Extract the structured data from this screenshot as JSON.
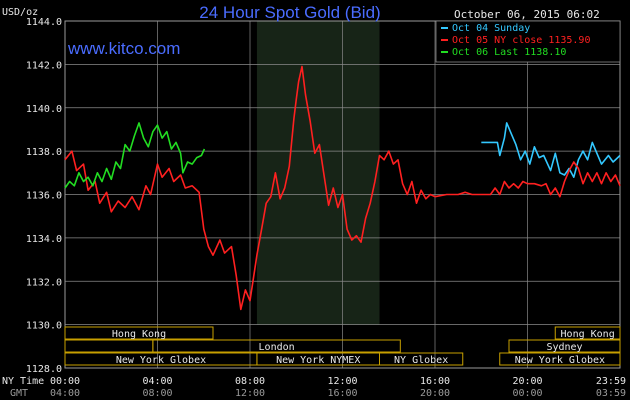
{
  "header": {
    "title": "24 Hour Spot Gold (Bid)",
    "datetime": "October 06, 2015 06:02",
    "unit": "USD/oz",
    "watermark": "www.kitco.com"
  },
  "legend": [
    {
      "label": "Oct 04 Sunday",
      "color": "#33c8ff"
    },
    {
      "label": "Oct 05 NY close 1135.90",
      "color": "#ff2020"
    },
    {
      "label": "Oct 06 Last 1138.10",
      "color": "#22dd22"
    }
  ],
  "colors": {
    "background": "#000000",
    "grid": "#8a8a8a",
    "title": "#4a6cff",
    "session_box": "#c8a000",
    "shaded_session": "#1a2a1a"
  },
  "sessions": {
    "row1": [
      {
        "label": "Hong Kong",
        "start_hour": 0,
        "end_hour": 6.4
      },
      {
        "label": "Hong Kong",
        "start_hour": 21.2,
        "end_hour": 24.0
      }
    ],
    "row2": [
      {
        "label": "",
        "start_hour": 0,
        "end_hour": 3.8
      },
      {
        "label": "London",
        "start_hour": 3.8,
        "end_hour": 14.5
      },
      {
        "label": "Sydney",
        "start_hour": 19.2,
        "end_hour": 24.0
      }
    ],
    "row3": [
      {
        "label": "New York Globex",
        "start_hour": 0,
        "end_hour": 8.3
      },
      {
        "label": "New York NYMEX",
        "start_hour": 8.3,
        "end_hour": 13.6
      },
      {
        "label": "NY Globex",
        "start_hour": 13.6,
        "end_hour": 17.2
      },
      {
        "label": "New York Globex",
        "start_hour": 18.8,
        "end_hour": 24.0
      }
    ]
  },
  "time_axis": {
    "ny_label": "NY Time",
    "gmt_label": "GMT",
    "ny_ticks": [
      "00:00",
      "04:00",
      "08:00",
      "12:00",
      "16:00",
      "20:00",
      "23:59"
    ],
    "gmt_ticks": [
      "04:00",
      "08:00",
      "12:00",
      "16:00",
      "20:00",
      "00:00",
      "03:59"
    ]
  },
  "chart_data": {
    "type": "line",
    "title": "24 Hour Spot Gold (Bid)",
    "ylabel": "USD/oz",
    "ylim": [
      1128.0,
      1144.0
    ],
    "yticks": [
      "1128.0",
      "1130.0",
      "1132.0",
      "1134.0",
      "1136.0",
      "1138.0",
      "1140.0",
      "1142.0",
      "1144.0"
    ],
    "xlim": [
      0,
      24
    ],
    "grid": true,
    "shaded_range_hours": [
      8.3,
      13.6
    ],
    "series": [
      {
        "name": "Oct 04 Sunday",
        "color": "#33c8ff",
        "points": [
          [
            18.0,
            1138.4
          ],
          [
            18.7,
            1138.4
          ],
          [
            18.8,
            1137.8
          ],
          [
            19.0,
            1138.6
          ],
          [
            19.1,
            1139.3
          ],
          [
            19.3,
            1138.8
          ],
          [
            19.5,
            1138.3
          ],
          [
            19.7,
            1137.6
          ],
          [
            19.9,
            1138.0
          ],
          [
            20.1,
            1137.4
          ],
          [
            20.3,
            1138.2
          ],
          [
            20.5,
            1137.7
          ],
          [
            20.7,
            1137.8
          ],
          [
            21.0,
            1137.1
          ],
          [
            21.2,
            1137.9
          ],
          [
            21.4,
            1137.0
          ],
          [
            21.6,
            1136.9
          ],
          [
            21.8,
            1137.2
          ],
          [
            22.0,
            1136.8
          ],
          [
            22.2,
            1137.6
          ],
          [
            22.4,
            1138.0
          ],
          [
            22.6,
            1137.6
          ],
          [
            22.8,
            1138.4
          ],
          [
            23.0,
            1137.9
          ],
          [
            23.2,
            1137.4
          ],
          [
            23.5,
            1137.8
          ],
          [
            23.7,
            1137.5
          ],
          [
            24.0,
            1137.8
          ]
        ]
      },
      {
        "name": "Oct 05 NY close 1135.90",
        "color": "#ff2020",
        "points": [
          [
            0.0,
            1137.6
          ],
          [
            0.3,
            1138.0
          ],
          [
            0.5,
            1137.1
          ],
          [
            0.8,
            1137.4
          ],
          [
            1.0,
            1136.2
          ],
          [
            1.3,
            1136.6
          ],
          [
            1.5,
            1135.6
          ],
          [
            1.8,
            1136.1
          ],
          [
            2.0,
            1135.2
          ],
          [
            2.3,
            1135.7
          ],
          [
            2.6,
            1135.4
          ],
          [
            2.9,
            1135.9
          ],
          [
            3.2,
            1135.3
          ],
          [
            3.5,
            1136.4
          ],
          [
            3.7,
            1136.0
          ],
          [
            4.0,
            1137.4
          ],
          [
            4.2,
            1136.8
          ],
          [
            4.5,
            1137.2
          ],
          [
            4.7,
            1136.6
          ],
          [
            5.0,
            1136.9
          ],
          [
            5.2,
            1136.3
          ],
          [
            5.5,
            1136.4
          ],
          [
            5.8,
            1136.1
          ],
          [
            6.0,
            1134.4
          ],
          [
            6.2,
            1133.6
          ],
          [
            6.4,
            1133.2
          ],
          [
            6.7,
            1133.9
          ],
          [
            6.9,
            1133.3
          ],
          [
            7.2,
            1133.6
          ],
          [
            7.4,
            1132.3
          ],
          [
            7.6,
            1130.7
          ],
          [
            7.8,
            1131.6
          ],
          [
            8.0,
            1131.1
          ],
          [
            8.3,
            1133.2
          ],
          [
            8.5,
            1134.4
          ],
          [
            8.7,
            1135.6
          ],
          [
            8.9,
            1135.9
          ],
          [
            9.1,
            1137.0
          ],
          [
            9.3,
            1135.8
          ],
          [
            9.5,
            1136.3
          ],
          [
            9.7,
            1137.3
          ],
          [
            9.9,
            1139.5
          ],
          [
            10.0,
            1140.4
          ],
          [
            10.1,
            1141.2
          ],
          [
            10.25,
            1141.9
          ],
          [
            10.4,
            1140.6
          ],
          [
            10.6,
            1139.4
          ],
          [
            10.8,
            1137.9
          ],
          [
            11.0,
            1138.3
          ],
          [
            11.2,
            1136.9
          ],
          [
            11.4,
            1135.5
          ],
          [
            11.6,
            1136.3
          ],
          [
            11.8,
            1135.4
          ],
          [
            12.0,
            1136.0
          ],
          [
            12.2,
            1134.4
          ],
          [
            12.4,
            1133.9
          ],
          [
            12.6,
            1134.1
          ],
          [
            12.8,
            1133.8
          ],
          [
            13.0,
            1134.9
          ],
          [
            13.2,
            1135.6
          ],
          [
            13.4,
            1136.6
          ],
          [
            13.6,
            1137.8
          ],
          [
            13.8,
            1137.6
          ],
          [
            14.0,
            1138.0
          ],
          [
            14.2,
            1137.4
          ],
          [
            14.4,
            1137.6
          ],
          [
            14.6,
            1136.5
          ],
          [
            14.8,
            1136.0
          ],
          [
            15.0,
            1136.6
          ],
          [
            15.2,
            1135.6
          ],
          [
            15.4,
            1136.2
          ],
          [
            15.6,
            1135.8
          ],
          [
            15.8,
            1136.0
          ],
          [
            16.0,
            1135.9
          ],
          [
            16.5,
            1136.0
          ],
          [
            17.0,
            1136.0
          ],
          [
            17.3,
            1136.1
          ],
          [
            17.6,
            1136.0
          ],
          [
            18.0,
            1136.0
          ],
          [
            18.4,
            1136.0
          ],
          [
            18.6,
            1136.3
          ],
          [
            18.8,
            1136.0
          ],
          [
            19.0,
            1136.6
          ],
          [
            19.2,
            1136.3
          ],
          [
            19.4,
            1136.5
          ],
          [
            19.6,
            1136.3
          ],
          [
            19.8,
            1136.6
          ],
          [
            20.0,
            1136.5
          ],
          [
            20.3,
            1136.5
          ],
          [
            20.6,
            1136.4
          ],
          [
            20.8,
            1136.5
          ],
          [
            21.0,
            1136.0
          ],
          [
            21.2,
            1136.3
          ],
          [
            21.4,
            1135.9
          ],
          [
            21.6,
            1136.6
          ],
          [
            21.8,
            1137.1
          ],
          [
            22.0,
            1137.5
          ],
          [
            22.2,
            1137.2
          ],
          [
            22.4,
            1136.5
          ],
          [
            22.6,
            1137.0
          ],
          [
            22.8,
            1136.6
          ],
          [
            23.0,
            1137.0
          ],
          [
            23.2,
            1136.5
          ],
          [
            23.4,
            1137.0
          ],
          [
            23.6,
            1136.6
          ],
          [
            23.8,
            1136.9
          ],
          [
            24.0,
            1136.4
          ]
        ]
      },
      {
        "name": "Oct 06 Last 1138.10",
        "color": "#22dd22",
        "points": [
          [
            0.0,
            1136.3
          ],
          [
            0.2,
            1136.6
          ],
          [
            0.4,
            1136.4
          ],
          [
            0.6,
            1137.0
          ],
          [
            0.8,
            1136.6
          ],
          [
            1.0,
            1136.8
          ],
          [
            1.2,
            1136.4
          ],
          [
            1.4,
            1137.0
          ],
          [
            1.6,
            1136.6
          ],
          [
            1.8,
            1137.2
          ],
          [
            2.0,
            1136.7
          ],
          [
            2.2,
            1137.5
          ],
          [
            2.4,
            1137.2
          ],
          [
            2.6,
            1138.3
          ],
          [
            2.8,
            1138.0
          ],
          [
            3.0,
            1138.7
          ],
          [
            3.2,
            1139.3
          ],
          [
            3.4,
            1138.6
          ],
          [
            3.6,
            1138.2
          ],
          [
            3.8,
            1138.9
          ],
          [
            4.0,
            1139.2
          ],
          [
            4.2,
            1138.6
          ],
          [
            4.4,
            1138.9
          ],
          [
            4.6,
            1138.1
          ],
          [
            4.8,
            1138.4
          ],
          [
            5.0,
            1137.9
          ],
          [
            5.1,
            1137.0
          ],
          [
            5.3,
            1137.5
          ],
          [
            5.5,
            1137.4
          ],
          [
            5.7,
            1137.7
          ],
          [
            5.9,
            1137.8
          ],
          [
            6.03,
            1138.1
          ]
        ]
      }
    ]
  }
}
